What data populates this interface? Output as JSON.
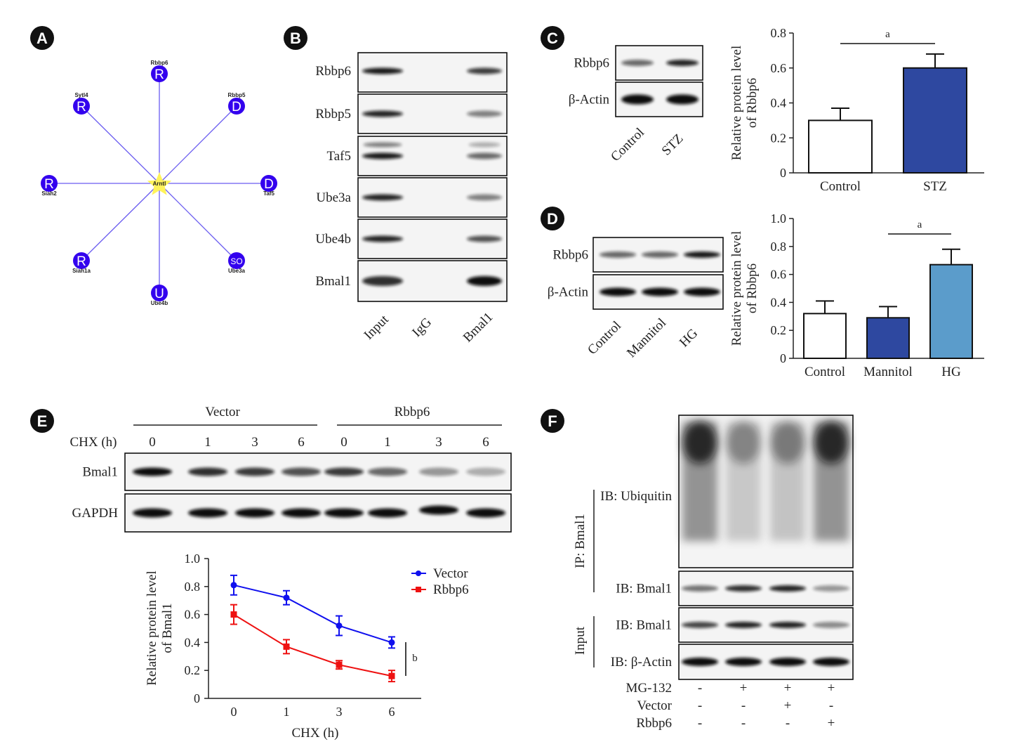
{
  "panels": {
    "A": "A",
    "B": "B",
    "C": "C",
    "D": "D",
    "E": "E",
    "F": "F"
  },
  "network": {
    "center": "Arntl",
    "nodes": [
      {
        "name": "Rbbp6",
        "letter": "R"
      },
      {
        "name": "Rbbp5",
        "letter": "D"
      },
      {
        "name": "Taf5",
        "letter": "D"
      },
      {
        "name": "Ube3a",
        "letter": "SO"
      },
      {
        "name": "Ube4b",
        "letter": "U"
      },
      {
        "name": "Siah1a",
        "letter": "R"
      },
      {
        "name": "Siah2",
        "letter": "R"
      },
      {
        "name": "Sytl4",
        "letter": "R"
      }
    ],
    "node_color": "#3300ee",
    "edge_color": "#6a5cf0",
    "center_color": "#fff35a"
  },
  "blot_B": {
    "rows": [
      "Rbbp6",
      "Rbbp5",
      "Taf5",
      "Ube3a",
      "Ube4b",
      "Bmal1"
    ],
    "lanes": [
      "Input",
      "IgG",
      "Bmal1"
    ],
    "bands": [
      [
        0.95,
        0,
        0.8
      ],
      [
        0.9,
        0,
        0.5
      ],
      [
        0.95,
        0,
        0.6
      ],
      [
        0.9,
        0,
        0.5
      ],
      [
        0.9,
        0,
        0.7
      ],
      [
        0.85,
        0,
        1
      ]
    ]
  },
  "blot_C": {
    "rows": [
      "Rbbp6",
      "β-Actin"
    ],
    "lanes": [
      "Control",
      "STZ"
    ],
    "bands": [
      [
        0.6,
        0.9
      ],
      [
        1,
        1
      ]
    ]
  },
  "blot_D": {
    "rows": [
      "Rbbp6",
      "β-Actin"
    ],
    "lanes": [
      "Control",
      "Mannitol",
      "HG"
    ],
    "bands": [
      [
        0.6,
        0.6,
        0.95
      ],
      [
        1,
        1,
        1
      ]
    ]
  },
  "blot_E": {
    "groups": [
      "Vector",
      "Rbbp6"
    ],
    "row_header": "CHX (h)",
    "lanes": [
      "0",
      "1",
      "3",
      "6",
      "0",
      "1",
      "3",
      "6"
    ],
    "rows": [
      "Bmal1",
      "GAPDH"
    ],
    "bands": [
      [
        1,
        0.85,
        0.8,
        0.7,
        0.8,
        0.6,
        0.4,
        0.3
      ],
      [
        1,
        1,
        1,
        1,
        1,
        1,
        1,
        1
      ]
    ]
  },
  "blot_F": {
    "ip_label": "IP: Bmal1",
    "input_label": "Input",
    "rows": [
      "IB: Ubiquitin",
      "IB: Bmal1",
      "IB: Bmal1",
      "IB: β-Actin"
    ],
    "bands": [
      [
        1,
        0.45,
        0.5,
        1
      ],
      [
        0.55,
        0.85,
        0.9,
        0.4
      ],
      [
        0.75,
        0.9,
        0.9,
        0.45
      ],
      [
        1,
        1,
        1,
        1
      ]
    ],
    "treatments": [
      {
        "label": "MG-132",
        "values": [
          "-",
          "+",
          "+",
          "+"
        ]
      },
      {
        "label": "Vector",
        "values": [
          "-",
          "-",
          "+",
          "-"
        ]
      },
      {
        "label": "Rbbp6",
        "values": [
          "-",
          "-",
          "-",
          "+"
        ]
      }
    ]
  },
  "chart_data": [
    {
      "id": "C",
      "type": "bar",
      "categories": [
        "Control",
        "STZ"
      ],
      "values": [
        0.3,
        0.6
      ],
      "errors": [
        0.07,
        0.08
      ],
      "colors": [
        "#ffffff",
        "#2e48a0"
      ],
      "ylabel": "Relative protein level of Rbbp6",
      "ylabel_lines": [
        "Relative protein level",
        "of Rbbp6"
      ],
      "ylim": [
        0,
        0.8
      ],
      "yticks": [
        "0",
        "0.2",
        "0.4",
        "0.6",
        "0.8"
      ],
      "significance": {
        "label": "a",
        "between": [
          "Control",
          "STZ"
        ]
      }
    },
    {
      "id": "D",
      "type": "bar",
      "categories": [
        "Control",
        "Mannitol",
        "HG"
      ],
      "values": [
        0.32,
        0.29,
        0.67
      ],
      "errors": [
        0.09,
        0.08,
        0.11
      ],
      "colors": [
        "#ffffff",
        "#2e48a0",
        "#5b9ccb"
      ],
      "ylabel": "Relative protein level of Rbbp6",
      "ylabel_lines": [
        "Relative protein level",
        "of Rbbp6"
      ],
      "ylim": [
        0,
        1.0
      ],
      "yticks": [
        "0",
        "0.2",
        "0.4",
        "0.6",
        "0.8",
        "1.0"
      ],
      "significance": {
        "label": "a",
        "between": [
          "Mannitol",
          "HG"
        ]
      }
    },
    {
      "id": "E",
      "type": "line",
      "x": [
        "0",
        "1",
        "3",
        "6"
      ],
      "series": [
        {
          "name": "Vector",
          "values": [
            0.81,
            0.72,
            0.52,
            0.4
          ],
          "errors": [
            0.07,
            0.05,
            0.07,
            0.04
          ],
          "color": "#1010ee",
          "marker": "circle"
        },
        {
          "name": "Rbbp6",
          "values": [
            0.6,
            0.37,
            0.24,
            0.16
          ],
          "errors": [
            0.07,
            0.05,
            0.03,
            0.04
          ],
          "color": "#ee1111",
          "marker": "square"
        }
      ],
      "xlabel": "CHX (h)",
      "ylabel": "Relative protein level of Bmal1",
      "ylabel_lines": [
        "Relative protein level",
        "of Bmal1"
      ],
      "ylim": [
        0,
        1.0
      ],
      "yticks": [
        "0",
        "0.2",
        "0.4",
        "0.6",
        "0.8",
        "1.0"
      ],
      "legend": "top-right",
      "significance": {
        "label": "b"
      }
    }
  ]
}
